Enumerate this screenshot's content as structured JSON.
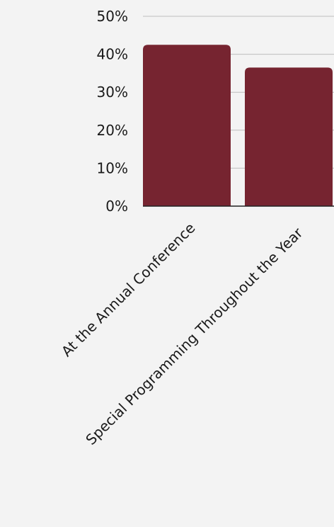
{
  "chart_data": {
    "type": "bar",
    "categories": [
      "At the Annual Conference",
      "Special Programming Throughout the Year"
    ],
    "values": [
      42.5,
      36.5
    ],
    "unit": "%",
    "ylim": [
      0,
      50
    ],
    "yticks": [
      0,
      10,
      20,
      30,
      40,
      50
    ],
    "ytick_labels": [
      "0%",
      "10%",
      "20%",
      "30%",
      "40%",
      "50%"
    ],
    "title": "",
    "xlabel": "",
    "ylabel": "",
    "grid": true,
    "legend": "none",
    "colors": {
      "bar": "#762430",
      "grid": "#bdbdbd",
      "text": "#1a1a1a",
      "background": "#f3f3f3"
    }
  }
}
